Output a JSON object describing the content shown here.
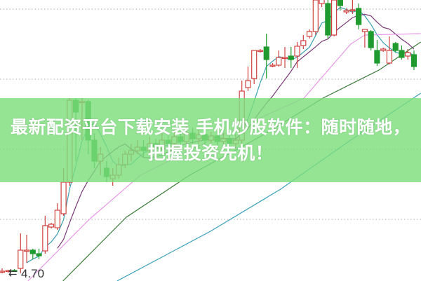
{
  "banner": {
    "line1": "最新配资平台下载安装 手机炒股软件：随时随地，",
    "line2": "把握投资先机！"
  },
  "chart_data": {
    "type": "candlestick",
    "title": "",
    "price_label": "4.70",
    "ylim": [
      4.59,
      8.6
    ],
    "gridlines": [
      5.47,
      6.47,
      7.47,
      8.47
    ],
    "grid": "dotted horizontal",
    "colors": {
      "up": "#d0413f",
      "down": "#1e9a2e",
      "ma5": "#3aa0b0",
      "ma10": "#7a3a78",
      "ma_pink": "#e89ae8",
      "ma_green": "#3a7a3a",
      "ma_teal": "#3aa0b8",
      "banner": "#7dde7d"
    },
    "candles_ohlc": [
      [
        4.73,
        4.73,
        4.77,
        4.7
      ],
      [
        4.73,
        4.74,
        4.75,
        4.71
      ],
      [
        4.74,
        4.73,
        4.76,
        4.72
      ],
      [
        4.77,
        5.03,
        5.27,
        4.7
      ],
      [
        5.03,
        5.03,
        5.25,
        4.85
      ],
      [
        5.03,
        4.98,
        5.05,
        4.9
      ],
      [
        4.98,
        4.95,
        5.05,
        4.9
      ],
      [
        5.02,
        5.38,
        5.52,
        4.98
      ],
      [
        5.36,
        5.4,
        5.42,
        5.34
      ],
      [
        5.35,
        5.6,
        5.7,
        5.32
      ],
      [
        5.55,
        6.0,
        6.2,
        5.52
      ],
      [
        6.0,
        7.17,
        7.2,
        5.95
      ],
      [
        7.17,
        7.0,
        7.2,
        6.3
      ],
      [
        7.15,
        7.15,
        7.2,
        6.6
      ],
      [
        7.15,
        6.6,
        7.17,
        6.4
      ],
      [
        6.6,
        6.3,
        6.7,
        6.2
      ],
      [
        6.3,
        6.4,
        6.5,
        6.1
      ],
      [
        6.2,
        6.08,
        6.3,
        6.0
      ],
      [
        6.05,
        6.1,
        6.2,
        5.95
      ],
      [
        6.1,
        6.25,
        6.35,
        6.05
      ],
      [
        6.25,
        6.4,
        6.45,
        6.2
      ],
      [
        6.4,
        6.45,
        6.55,
        6.3
      ],
      [
        6.45,
        6.5,
        6.6,
        6.4
      ],
      [
        6.5,
        6.45,
        6.6,
        6.35
      ],
      [
        6.45,
        6.55,
        6.65,
        6.4
      ],
      [
        6.55,
        6.48,
        6.62,
        6.4
      ],
      [
        6.48,
        6.6,
        6.7,
        6.45
      ],
      [
        6.6,
        6.55,
        6.72,
        6.5
      ],
      [
        6.55,
        6.65,
        6.75,
        6.5
      ],
      [
        6.65,
        6.58,
        6.72,
        6.52
      ],
      [
        6.58,
        6.7,
        6.8,
        6.55
      ],
      [
        6.7,
        6.62,
        6.78,
        6.55
      ],
      [
        6.62,
        6.68,
        6.75,
        6.55
      ],
      [
        6.68,
        6.6,
        6.74,
        6.52
      ],
      [
        6.6,
        6.66,
        6.72,
        6.55
      ],
      [
        6.66,
        6.58,
        6.72,
        6.5
      ],
      [
        6.58,
        6.62,
        6.7,
        6.5
      ],
      [
        6.62,
        6.55,
        6.68,
        6.45
      ],
      [
        6.55,
        6.6,
        6.68,
        6.48
      ],
      [
        6.6,
        7.3,
        7.45,
        6.5
      ],
      [
        7.35,
        7.45,
        7.65,
        7.3
      ],
      [
        7.48,
        7.88,
        7.88,
        7.4
      ],
      [
        7.88,
        7.88,
        7.9,
        7.85
      ],
      [
        7.93,
        7.75,
        8.12,
        7.48
      ],
      [
        7.67,
        7.67,
        7.7,
        7.64
      ],
      [
        7.67,
        7.78,
        7.88,
        7.65
      ],
      [
        7.78,
        7.78,
        7.93,
        7.63
      ],
      [
        7.8,
        7.75,
        7.93,
        7.63
      ],
      [
        7.8,
        7.94,
        8.0,
        7.63
      ],
      [
        7.95,
        8.02,
        8.1,
        7.9
      ],
      [
        8.08,
        8.15,
        8.18,
        8.05
      ],
      [
        8.15,
        8.6,
        8.6,
        8.1
      ],
      [
        8.55,
        8.65,
        8.7,
        8.5
      ],
      [
        8.55,
        8.1,
        8.6,
        8.05
      ],
      [
        8.1,
        8.6,
        8.65,
        8.08
      ],
      [
        8.6,
        8.52,
        8.65,
        8.45
      ],
      [
        8.43,
        8.45,
        8.48,
        8.4
      ],
      [
        8.45,
        8.46,
        8.6,
        8.4
      ],
      [
        8.48,
        8.25,
        8.55,
        8.18
      ],
      [
        8.15,
        8.18,
        8.18,
        7.92
      ],
      [
        8.15,
        7.92,
        8.17,
        7.88
      ],
      [
        7.88,
        7.7,
        8.03,
        7.66
      ],
      [
        7.88,
        7.9,
        7.92,
        7.86
      ],
      [
        7.7,
        7.88,
        8.08,
        7.68
      ],
      [
        7.98,
        7.88,
        8.0,
        7.85
      ],
      [
        7.88,
        7.78,
        7.95,
        7.75
      ],
      [
        7.8,
        7.85,
        7.9,
        7.75
      ],
      [
        7.82,
        7.65,
        7.88,
        7.6
      ]
    ],
    "moving_averages": [
      {
        "key": "ma5",
        "period": 5
      },
      {
        "key": "ma10",
        "period": 10
      },
      {
        "key": "ma_pink",
        "points": [
          [
            4.2,
            4.59
          ],
          [
            14.2,
            5.47
          ],
          [
            22.5,
            6.1
          ],
          [
            33.9,
            6.6
          ],
          [
            49.1,
            7.2
          ],
          [
            56.7,
            7.97
          ],
          [
            59,
            8.1
          ],
          [
            68.1,
            8.12
          ]
        ]
      },
      {
        "key": "ma_green",
        "points": [
          [
            9.9,
            4.59
          ],
          [
            20.2,
            5.5
          ],
          [
            30.5,
            6.1
          ],
          [
            43,
            6.7
          ],
          [
            52.2,
            7.2
          ],
          [
            61.3,
            7.6
          ],
          [
            68.1,
            8.0
          ]
        ]
      },
      {
        "key": "ma_teal",
        "points": [
          [
            18.7,
            4.59
          ],
          [
            33.9,
            5.3
          ],
          [
            45.3,
            5.9
          ],
          [
            56.7,
            6.6
          ],
          [
            68.1,
            7.27
          ]
        ]
      }
    ]
  }
}
